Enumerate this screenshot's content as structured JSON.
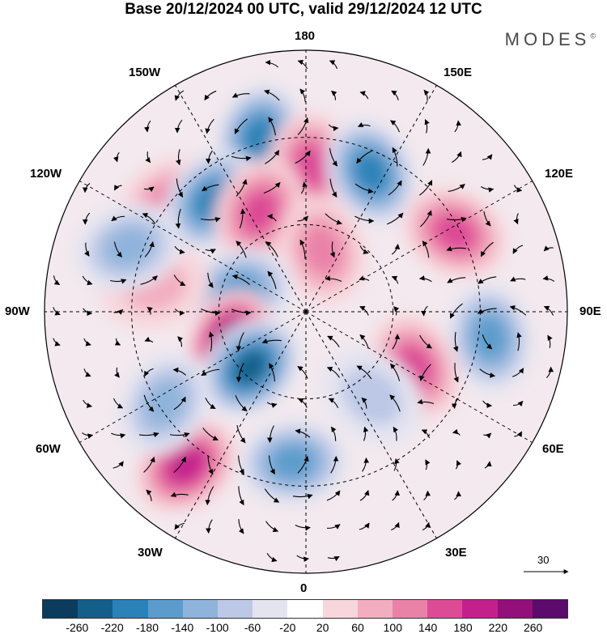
{
  "title": "Base 20/12/2024 00 UTC, valid 29/12/2024 12 UTC",
  "brand": "MODES",
  "brand_mark": "©",
  "longitude_labels": {
    "top": "180",
    "upper_left": "150W",
    "upper_right": "150E",
    "left_upper": "120W",
    "right_upper": "120E",
    "left": "90W",
    "right": "90E",
    "left_lower": "60W",
    "right_lower": "60E",
    "lower_left": "30W",
    "lower_right": "30E",
    "bottom": "0"
  },
  "reference_vector": {
    "label": "30"
  },
  "colorbar": {
    "colors": [
      "#0b3c5d",
      "#135f8a",
      "#2a82b8",
      "#5b9ccc",
      "#8fb4dc",
      "#bcc8e6",
      "#e4e4f0",
      "#ffffff",
      "#f7d6dc",
      "#f2aec0",
      "#ea82a8",
      "#dd4a96",
      "#c4208c",
      "#93107a",
      "#5c0a6b"
    ],
    "ticks": [
      "-260",
      "-220",
      "-180",
      "-140",
      "-100",
      "-60",
      "-20",
      "20",
      "60",
      "100",
      "140",
      "180",
      "220",
      "260"
    ]
  },
  "anomaly_centers": [
    {
      "lon_deg": -165,
      "colat_deg": 62,
      "value": -180
    },
    {
      "lon_deg": 178,
      "colat_deg": 50,
      "value": 140
    },
    {
      "lon_deg": 155,
      "colat_deg": 53,
      "value": -180
    },
    {
      "lon_deg": -128,
      "colat_deg": 60,
      "value": 100
    },
    {
      "lon_deg": -140,
      "colat_deg": 50,
      "value": -180
    },
    {
      "lon_deg": -155,
      "colat_deg": 38,
      "value": 140
    },
    {
      "lon_deg": 165,
      "colat_deg": 22,
      "value": 100
    },
    {
      "lon_deg": 118,
      "colat_deg": 58,
      "value": 140
    },
    {
      "lon_deg": 82,
      "colat_deg": 64,
      "value": -140
    },
    {
      "lon_deg": 63,
      "colat_deg": 42,
      "value": 140
    },
    {
      "lon_deg": -107,
      "colat_deg": 24,
      "value": -140
    },
    {
      "lon_deg": -67,
      "colat_deg": 28,
      "value": 260
    },
    {
      "lon_deg": -45,
      "colat_deg": 27,
      "value": -220
    },
    {
      "lon_deg": -38,
      "colat_deg": 67,
      "value": 180
    },
    {
      "lon_deg": -57,
      "colat_deg": 58,
      "value": -100
    },
    {
      "lon_deg": -5,
      "colat_deg": 52,
      "value": -140
    },
    {
      "lon_deg": 38,
      "colat_deg": 37,
      "value": -60
    },
    {
      "lon_deg": -100,
      "colat_deg": 53,
      "value": 60
    },
    {
      "lon_deg": -110,
      "colat_deg": 65,
      "value": -100
    }
  ]
}
